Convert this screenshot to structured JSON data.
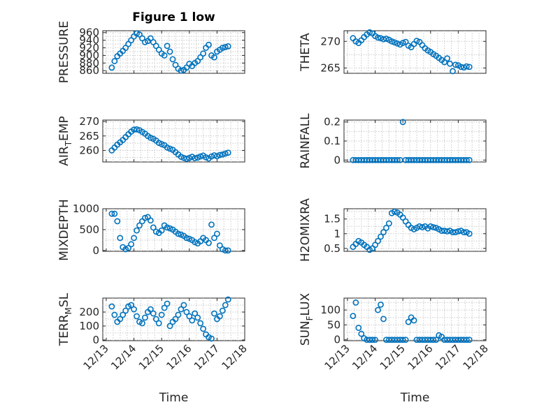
{
  "title": "Figure 1 low",
  "xlabel": "Time",
  "xtick_labels": [
    "12/13",
    "12/14",
    "12/15",
    "12/16",
    "12/17",
    "12/18"
  ],
  "marker_color": "#0072BD",
  "chart_data": [
    {
      "type": "scatter",
      "title": "Figure 1 low",
      "ylabel": "PRESSURE",
      "ylabel_sub": "",
      "xlabel": "",
      "xlim": [
        12.875,
        18.0
      ],
      "ylim": [
        853,
        965
      ],
      "yticks": [
        860,
        880,
        900,
        920,
        940,
        960
      ],
      "grid": true,
      "x": [
        13.2,
        13.3,
        13.4,
        13.5,
        13.6,
        13.7,
        13.8,
        13.9,
        14.0,
        14.1,
        14.2,
        14.3,
        14.4,
        14.5,
        14.6,
        14.7,
        14.8,
        14.9,
        15.0,
        15.1,
        15.2,
        15.3,
        15.4,
        15.5,
        15.6,
        15.7,
        15.8,
        15.9,
        16.0,
        16.1,
        16.2,
        16.3,
        16.4,
        16.5,
        16.6,
        16.7,
        16.8,
        16.9,
        17.0,
        17.1,
        17.2,
        17.3,
        17.4
      ],
      "y": [
        868,
        885,
        898,
        905,
        912,
        920,
        930,
        940,
        950,
        958,
        955,
        945,
        935,
        938,
        945,
        935,
        925,
        915,
        905,
        900,
        925,
        910,
        890,
        875,
        865,
        860,
        862,
        868,
        878,
        872,
        880,
        885,
        895,
        905,
        920,
        928,
        900,
        895,
        910,
        915,
        920,
        922,
        924
      ]
    },
    {
      "type": "scatter",
      "title": "",
      "ylabel": "THETA",
      "ylabel_sub": "",
      "xlabel": "",
      "xlim": [
        12.875,
        18.0
      ],
      "ylim": [
        264,
        272
      ],
      "yticks": [
        265,
        270
      ],
      "grid": true,
      "x": [
        13.2,
        13.3,
        13.4,
        13.5,
        13.6,
        13.7,
        13.8,
        13.9,
        14.0,
        14.1,
        14.2,
        14.3,
        14.4,
        14.5,
        14.6,
        14.7,
        14.8,
        14.9,
        15.0,
        15.1,
        15.2,
        15.3,
        15.4,
        15.5,
        15.6,
        15.7,
        15.8,
        15.9,
        16.0,
        16.1,
        16.2,
        16.3,
        16.4,
        16.5,
        16.6,
        16.7,
        16.8,
        16.9,
        17.0,
        17.1,
        17.2,
        17.3,
        17.4
      ],
      "y": [
        270.6,
        270.0,
        269.7,
        270.2,
        270.8,
        271.3,
        271.7,
        271.5,
        271.0,
        270.7,
        270.6,
        270.4,
        270.5,
        270.3,
        270.0,
        269.8,
        269.6,
        269.4,
        269.7,
        269.9,
        269.2,
        268.9,
        269.5,
        270.1,
        269.9,
        269.3,
        268.7,
        268.3,
        268.0,
        267.6,
        267.3,
        266.9,
        266.5,
        266.1,
        266.8,
        265.8,
        264.4,
        265.6,
        265.5,
        265.2,
        265.1,
        265.3,
        265.2
      ]
    },
    {
      "type": "scatter",
      "title": "",
      "ylabel": "AIR",
      "ylabel_sub": "T",
      "ylabel_after": "EMP",
      "xlabel": "",
      "xlim": [
        12.875,
        18.0
      ],
      "ylim": [
        256,
        270.5
      ],
      "yticks": [
        260,
        265,
        270
      ],
      "grid": true,
      "x": [
        13.2,
        13.3,
        13.4,
        13.5,
        13.6,
        13.7,
        13.8,
        13.9,
        14.0,
        14.1,
        14.2,
        14.3,
        14.4,
        14.5,
        14.6,
        14.7,
        14.8,
        14.9,
        15.0,
        15.1,
        15.2,
        15.3,
        15.4,
        15.5,
        15.6,
        15.7,
        15.8,
        15.9,
        16.0,
        16.1,
        16.2,
        16.3,
        16.4,
        16.5,
        16.6,
        16.7,
        16.8,
        16.9,
        17.0,
        17.1,
        17.2,
        17.3,
        17.4
      ],
      "y": [
        260.0,
        261.0,
        262.0,
        262.8,
        263.6,
        264.6,
        265.6,
        266.5,
        267.2,
        267.3,
        267.0,
        266.4,
        265.8,
        265.0,
        264.4,
        264.0,
        263.4,
        262.6,
        262.2,
        261.8,
        261.0,
        260.6,
        260.2,
        259.4,
        258.6,
        257.8,
        257.4,
        257.1,
        257.4,
        257.8,
        257.3,
        257.5,
        257.9,
        258.2,
        257.6,
        257.2,
        257.9,
        258.3,
        258.0,
        258.4,
        258.6,
        258.9,
        259.2
      ]
    },
    {
      "type": "scatter",
      "title": "",
      "ylabel": "RAINFALL",
      "ylabel_sub": "",
      "xlabel": "",
      "xlim": [
        12.875,
        18.0
      ],
      "ylim": [
        -0.01,
        0.21
      ],
      "yticks": [
        0,
        0.1,
        0.2
      ],
      "ytick_labels": [
        "0",
        "0.1",
        "0.2"
      ],
      "grid": true,
      "x": [
        13.2,
        13.3,
        13.4,
        13.5,
        13.6,
        13.7,
        13.8,
        13.9,
        14.0,
        14.1,
        14.2,
        14.3,
        14.4,
        14.5,
        14.6,
        14.7,
        14.8,
        14.9,
        15.0,
        15.1,
        15.2,
        15.3,
        15.4,
        15.5,
        15.6,
        15.7,
        15.8,
        15.9,
        16.0,
        16.1,
        16.2,
        16.3,
        16.4,
        16.5,
        16.6,
        16.7,
        16.8,
        16.9,
        17.0,
        17.1,
        17.2,
        17.3,
        17.4
      ],
      "y": [
        0,
        0,
        0,
        0,
        0,
        0,
        0,
        0,
        0,
        0,
        0,
        0,
        0,
        0,
        0,
        0,
        0,
        0,
        0.2,
        0,
        0,
        0,
        0,
        0,
        0,
        0,
        0,
        0,
        0,
        0,
        0,
        0,
        0,
        0,
        0,
        0,
        0,
        0,
        0,
        0,
        0,
        0,
        0
      ]
    },
    {
      "type": "scatter",
      "title": "",
      "ylabel": "MIXDEPTH",
      "ylabel_sub": "",
      "xlabel": "",
      "xlim": [
        12.875,
        18.0
      ],
      "ylim": [
        -20,
        1000
      ],
      "yticks": [
        0,
        500,
        1000
      ],
      "grid": true,
      "x": [
        13.2,
        13.3,
        13.4,
        13.5,
        13.6,
        13.7,
        13.8,
        13.9,
        14.0,
        14.1,
        14.2,
        14.3,
        14.4,
        14.5,
        14.6,
        14.7,
        14.8,
        14.9,
        15.0,
        15.1,
        15.2,
        15.3,
        15.4,
        15.5,
        15.6,
        15.7,
        15.8,
        15.9,
        16.0,
        16.1,
        16.2,
        16.3,
        16.4,
        16.5,
        16.6,
        16.7,
        16.8,
        16.9,
        17.0,
        17.1,
        17.2,
        17.3,
        17.4
      ],
      "y": [
        880,
        880,
        700,
        300,
        80,
        30,
        60,
        150,
        300,
        480,
        600,
        700,
        780,
        800,
        720,
        550,
        450,
        420,
        480,
        600,
        550,
        530,
        500,
        450,
        400,
        380,
        350,
        300,
        280,
        250,
        200,
        170,
        220,
        300,
        250,
        180,
        620,
        300,
        400,
        120,
        30,
        0,
        0
      ]
    },
    {
      "type": "scatter",
      "title": "",
      "ylabel": "H2OMIXRA",
      "ylabel_sub": "",
      "xlabel": "",
      "xlim": [
        12.875,
        18.0
      ],
      "ylim": [
        0.4,
        1.85
      ],
      "yticks": [
        0.5,
        1,
        1.5
      ],
      "ytick_labels": [
        "0.5",
        "1",
        "1.5"
      ],
      "grid": true,
      "x": [
        13.2,
        13.3,
        13.4,
        13.5,
        13.6,
        13.7,
        13.8,
        13.9,
        14.0,
        14.1,
        14.2,
        14.3,
        14.4,
        14.5,
        14.6,
        14.7,
        14.8,
        14.9,
        15.0,
        15.1,
        15.2,
        15.3,
        15.4,
        15.5,
        15.6,
        15.7,
        15.8,
        15.9,
        16.0,
        16.1,
        16.2,
        16.3,
        16.4,
        16.5,
        16.6,
        16.7,
        16.8,
        16.9,
        17.0,
        17.1,
        17.2,
        17.3,
        17.4
      ],
      "y": [
        0.55,
        0.65,
        0.75,
        0.7,
        0.62,
        0.55,
        0.45,
        0.5,
        0.62,
        0.75,
        0.9,
        1.05,
        1.2,
        1.35,
        1.7,
        1.75,
        1.72,
        1.65,
        1.55,
        1.42,
        1.3,
        1.2,
        1.15,
        1.2,
        1.25,
        1.22,
        1.25,
        1.18,
        1.25,
        1.22,
        1.2,
        1.15,
        1.1,
        1.1,
        1.08,
        1.1,
        1.05,
        1.05,
        1.08,
        1.1,
        1.05,
        1.05,
        1.0
      ]
    },
    {
      "type": "scatter",
      "title": "",
      "ylabel": "TERR",
      "ylabel_sub": "M",
      "ylabel_after": "SL",
      "xlabel": "Time",
      "xlim": [
        12.875,
        18.0
      ],
      "ylim": [
        -5,
        300
      ],
      "yticks": [
        0,
        100,
        200
      ],
      "grid": true,
      "x": [
        13.2,
        13.3,
        13.4,
        13.5,
        13.6,
        13.7,
        13.8,
        13.9,
        14.0,
        14.1,
        14.2,
        14.3,
        14.4,
        14.5,
        14.6,
        14.7,
        14.8,
        14.9,
        15.0,
        15.1,
        15.2,
        15.3,
        15.4,
        15.5,
        15.6,
        15.7,
        15.8,
        15.9,
        16.0,
        16.1,
        16.2,
        16.3,
        16.4,
        16.5,
        16.6,
        16.7,
        16.8,
        16.9,
        17.0,
        17.1,
        17.2,
        17.3,
        17.4
      ],
      "y": [
        240,
        180,
        130,
        150,
        180,
        210,
        240,
        250,
        220,
        170,
        130,
        120,
        160,
        200,
        220,
        190,
        150,
        120,
        180,
        230,
        260,
        100,
        130,
        150,
        180,
        220,
        250,
        200,
        170,
        140,
        190,
        160,
        120,
        80,
        40,
        20,
        10,
        190,
        150,
        170,
        210,
        250,
        290
      ]
    },
    {
      "type": "scatter",
      "title": "",
      "ylabel": "SUN",
      "ylabel_sub": "F",
      "ylabel_after": "LUX",
      "xlabel": "Time",
      "xlim": [
        12.875,
        18.0
      ],
      "ylim": [
        -3,
        140
      ],
      "yticks": [
        0,
        50,
        100
      ],
      "grid": true,
      "x": [
        13.2,
        13.3,
        13.4,
        13.5,
        13.6,
        13.7,
        13.8,
        13.9,
        14.0,
        14.1,
        14.2,
        14.3,
        14.4,
        14.5,
        14.6,
        14.7,
        14.8,
        14.9,
        15.0,
        15.1,
        15.2,
        15.3,
        15.4,
        15.5,
        15.6,
        15.7,
        15.8,
        15.9,
        16.0,
        16.1,
        16.2,
        16.3,
        16.4,
        16.5,
        16.6,
        16.7,
        16.8,
        16.9,
        17.0,
        17.1,
        17.2,
        17.3,
        17.4
      ],
      "y": [
        80,
        125,
        40,
        20,
        5,
        0,
        0,
        0,
        0,
        100,
        118,
        70,
        0,
        0,
        0,
        0,
        0,
        0,
        0,
        0,
        60,
        75,
        65,
        0,
        0,
        0,
        0,
        0,
        0,
        0,
        0,
        15,
        10,
        0,
        0,
        0,
        0,
        0,
        0,
        0,
        0,
        0,
        0
      ]
    }
  ]
}
